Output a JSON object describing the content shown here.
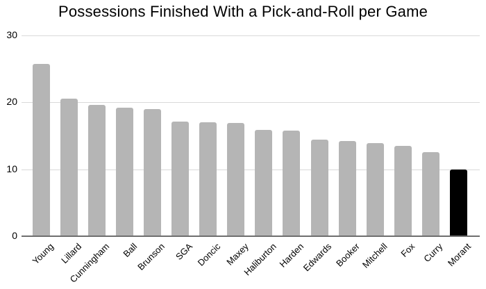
{
  "chart_data": {
    "type": "bar",
    "title": "Possessions Finished With a Pick-and-Roll per Game",
    "categories": [
      "Young",
      "Lillard",
      "Cunningham",
      "Ball",
      "Brunson",
      "SGA",
      "Doncic",
      "Maxey",
      "Haliburton",
      "Harden",
      "Edwards",
      "Booker",
      "Mitchell",
      "Fox",
      "Curry",
      "Morant"
    ],
    "values": [
      25.7,
      20.6,
      19.6,
      19.2,
      19.0,
      17.1,
      17.0,
      16.9,
      15.9,
      15.8,
      14.4,
      14.2,
      13.9,
      13.5,
      12.6,
      10.0
    ],
    "xlabel": "",
    "ylabel": "",
    "ylim": [
      0,
      30
    ],
    "yticks": [
      0,
      10,
      20,
      30
    ],
    "grid": true,
    "legend_position": "none",
    "highlight_category": "Morant",
    "highlight_index": 15,
    "colors": {
      "bar": "#b5b5b5",
      "highlight_bar": "#000000",
      "gridline": "#d9d9d9",
      "axis_line": "#6e6e6e",
      "text": "#000000"
    }
  }
}
